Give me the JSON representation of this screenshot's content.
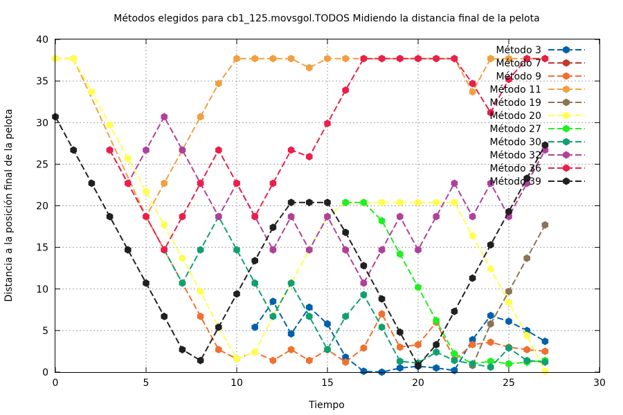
{
  "chart_data": {
    "type": "line",
    "title": "Métodos elegidos para cb1_125.movsgol.TODOS Midiendo la distancia final de la pelota",
    "xlabel": "Tiempo",
    "ylabel": "Distancia a la posición final de la pelota",
    "xlim": [
      0,
      30
    ],
    "ylim": [
      0,
      40
    ],
    "xticks": [
      0,
      5,
      10,
      15,
      20,
      25,
      30
    ],
    "yticks": [
      0,
      5,
      10,
      15,
      20,
      25,
      30,
      35,
      40
    ],
    "grid": true,
    "legend_position": "top-right",
    "series": [
      {
        "name": "Método 3",
        "color": "#0060ad",
        "points": [
          [
            11,
            5.4
          ],
          [
            12,
            8.5
          ],
          [
            13,
            4.6
          ],
          [
            14,
            7.8
          ],
          [
            15,
            5.8
          ],
          [
            16,
            1.8
          ],
          [
            17,
            0.1
          ],
          [
            18,
            0
          ],
          [
            19,
            0.5
          ],
          [
            20,
            0.7
          ],
          [
            21,
            0.5
          ],
          [
            22,
            0.2
          ],
          [
            23,
            3.9
          ],
          [
            24,
            6.8
          ],
          [
            25,
            6.1
          ],
          [
            26,
            5
          ],
          [
            27,
            3.7
          ]
        ]
      },
      {
        "name": "Método 7",
        "color": "#c0392b",
        "points": []
      },
      {
        "name": "Método 9",
        "color": "#f07030",
        "points": [
          [
            5,
            18.7
          ],
          [
            6,
            14.7
          ],
          [
            7,
            10.7
          ],
          [
            8,
            6.7
          ],
          [
            9,
            2.7
          ],
          [
            10,
            1.6
          ],
          [
            11,
            2.4
          ],
          [
            12,
            1.4
          ],
          [
            13,
            2.7
          ],
          [
            14,
            1.4
          ],
          [
            15,
            2.7
          ],
          [
            16,
            1.2
          ],
          [
            17,
            2.9
          ],
          [
            18,
            7
          ],
          [
            19,
            3
          ],
          [
            20,
            3.3
          ],
          [
            21,
            6
          ],
          [
            22,
            1.5
          ],
          [
            23,
            3.3
          ],
          [
            24,
            3.6
          ],
          [
            25,
            3
          ],
          [
            26,
            2.7
          ],
          [
            27,
            2.5
          ]
        ]
      },
      {
        "name": "Método 11",
        "color": "#f0a040",
        "points": [
          [
            0,
            37.7
          ],
          [
            1,
            37.7
          ],
          [
            5,
            18.7
          ],
          [
            6,
            22.7
          ],
          [
            7,
            26.7
          ],
          [
            8,
            30.7
          ],
          [
            9,
            34.7
          ],
          [
            10,
            37.7
          ],
          [
            11,
            37.7
          ],
          [
            12,
            37.7
          ],
          [
            13,
            37.7
          ],
          [
            14,
            36.6
          ],
          [
            15,
            37.7
          ],
          [
            16,
            37.7
          ],
          [
            17,
            37.7
          ],
          [
            18,
            37.7
          ],
          [
            19,
            37.7
          ],
          [
            20,
            37.7
          ],
          [
            21,
            37.7
          ],
          [
            22,
            37.7
          ],
          [
            23,
            33.7
          ],
          [
            24,
            37.7
          ],
          [
            25,
            37.7
          ],
          [
            26,
            37.7
          ],
          [
            27,
            37.7
          ]
        ]
      },
      {
        "name": "Método 19",
        "color": "#8b7355",
        "points": [
          [
            23,
            0.8
          ],
          [
            24,
            5.8
          ],
          [
            25,
            9.7
          ],
          [
            26,
            13.7
          ],
          [
            27,
            17.7
          ]
        ]
      },
      {
        "name": "Método 20",
        "color": "#ffff50",
        "points": [
          [
            0,
            37.7
          ],
          [
            1,
            37.7
          ],
          [
            2,
            33.7
          ],
          [
            3,
            29.7
          ],
          [
            4,
            25.7
          ],
          [
            5,
            21.7
          ],
          [
            6,
            17.7
          ],
          [
            7,
            13.7
          ],
          [
            8,
            9.7
          ],
          [
            9,
            5.4
          ],
          [
            10,
            1.6
          ],
          [
            11,
            2.4
          ],
          [
            12,
            6.7
          ],
          [
            13,
            10.7
          ],
          [
            14,
            14.7
          ],
          [
            15,
            18.7
          ],
          [
            16,
            20.4
          ],
          [
            17,
            20.4
          ],
          [
            18,
            20.4
          ],
          [
            19,
            20.4
          ],
          [
            20,
            20.4
          ],
          [
            21,
            20.4
          ],
          [
            22,
            20.4
          ],
          [
            23,
            16.4
          ],
          [
            24,
            12.4
          ],
          [
            25,
            8.4
          ],
          [
            26,
            4.4
          ],
          [
            27,
            0.1
          ]
        ]
      },
      {
        "name": "Método 27",
        "color": "#20f020",
        "points": [
          [
            16,
            20.4
          ],
          [
            17,
            20.4
          ],
          [
            18,
            18.2
          ],
          [
            19,
            14.2
          ],
          [
            20,
            10.2
          ],
          [
            21,
            6.2
          ],
          [
            22,
            2.2
          ],
          [
            23,
            1
          ],
          [
            24,
            1.3
          ],
          [
            25,
            1
          ],
          [
            26,
            1.2
          ],
          [
            27,
            1.4
          ]
        ]
      },
      {
        "name": "Método 30",
        "color": "#10a070",
        "points": [
          [
            6,
            14.7
          ],
          [
            7,
            10.7
          ],
          [
            8,
            14.7
          ],
          [
            9,
            18.7
          ],
          [
            10,
            14.7
          ],
          [
            11,
            10.7
          ],
          [
            12,
            6.7
          ],
          [
            13,
            10.7
          ],
          [
            14,
            6.7
          ],
          [
            15,
            2.7
          ],
          [
            16,
            6.7
          ],
          [
            17,
            9.3
          ],
          [
            18,
            5.4
          ],
          [
            19,
            1.3
          ],
          [
            20,
            1.1
          ],
          [
            21,
            2.4
          ],
          [
            22,
            1.4
          ],
          [
            23,
            1
          ],
          [
            24,
            0.6
          ],
          [
            25,
            2.9
          ],
          [
            26,
            1.4
          ],
          [
            27,
            1.2
          ]
        ]
      },
      {
        "name": "Método 32",
        "color": "#b0409a",
        "points": [
          [
            3,
            26.7
          ],
          [
            4,
            22.7
          ],
          [
            5,
            26.7
          ],
          [
            6,
            30.7
          ],
          [
            7,
            26.7
          ],
          [
            8,
            22.7
          ],
          [
            9,
            18.7
          ],
          [
            10,
            22.7
          ],
          [
            11,
            18.7
          ],
          [
            12,
            14.7
          ],
          [
            13,
            18.7
          ],
          [
            14,
            14.7
          ],
          [
            15,
            18.7
          ],
          [
            16,
            14.7
          ],
          [
            17,
            10.7
          ],
          [
            18,
            14.7
          ],
          [
            19,
            18.7
          ],
          [
            20,
            14.7
          ],
          [
            21,
            18.7
          ],
          [
            22,
            22.7
          ],
          [
            23,
            18.7
          ],
          [
            24,
            22.7
          ],
          [
            25,
            18.7
          ],
          [
            26,
            22.7
          ],
          [
            27,
            26.7
          ]
        ]
      },
      {
        "name": "Método 36",
        "color": "#e8204a",
        "points": [
          [
            3,
            26.7
          ],
          [
            4,
            22.7
          ],
          [
            5,
            18.7
          ],
          [
            6,
            14.7
          ],
          [
            7,
            18.7
          ],
          [
            8,
            22.7
          ],
          [
            9,
            26.7
          ],
          [
            10,
            22.7
          ],
          [
            11,
            18.7
          ],
          [
            12,
            22.7
          ],
          [
            13,
            26.7
          ],
          [
            14,
            25.9
          ],
          [
            15,
            29.9
          ],
          [
            16,
            33.9
          ],
          [
            17,
            37.7
          ],
          [
            18,
            37.7
          ],
          [
            19,
            37.7
          ],
          [
            20,
            37.7
          ],
          [
            21,
            37.7
          ],
          [
            22,
            37.7
          ],
          [
            23,
            34.7
          ],
          [
            24,
            31.2
          ],
          [
            25,
            35.2
          ],
          [
            26,
            37.7
          ],
          [
            27,
            37.7
          ]
        ]
      },
      {
        "name": "Método 39",
        "color": "#202020",
        "points": [
          [
            0,
            30.7
          ],
          [
            1,
            26.7
          ],
          [
            2,
            22.7
          ],
          [
            3,
            18.7
          ],
          [
            4,
            14.7
          ],
          [
            5,
            10.7
          ],
          [
            6,
            6.7
          ],
          [
            7,
            2.7
          ],
          [
            8,
            1.4
          ],
          [
            9,
            5.4
          ],
          [
            10,
            9.4
          ],
          [
            11,
            13.4
          ],
          [
            12,
            17.4
          ],
          [
            13,
            20.4
          ],
          [
            14,
            20.4
          ],
          [
            15,
            20.4
          ],
          [
            16,
            16.8
          ],
          [
            17,
            12.8
          ],
          [
            18,
            8.8
          ],
          [
            19,
            4.8
          ],
          [
            20,
            0.8
          ],
          [
            21,
            3.3
          ],
          [
            22,
            7.3
          ],
          [
            23,
            11.3
          ],
          [
            24,
            15.3
          ],
          [
            25,
            19.3
          ],
          [
            26,
            23.3
          ],
          [
            27,
            27.3
          ]
        ]
      }
    ]
  }
}
